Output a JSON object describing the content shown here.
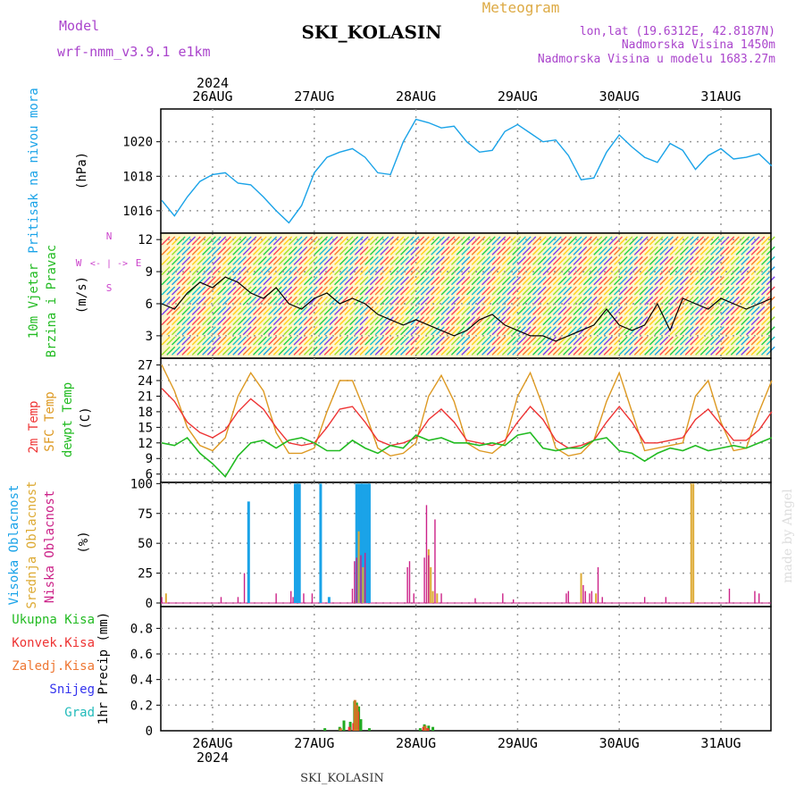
{
  "header": {
    "model_label": "Model",
    "model_name": "wrf-nmm_v3.9.1  e1km",
    "station": "SKI_KOLASIN",
    "meteogram": "Meteogram",
    "lonlat": "lon,lat (19.6312E, 42.8187N)",
    "altitude": "Nadmorska Visina 1450m",
    "model_altitude": "Nadmorska Visina u modelu 1683.27m",
    "footer_station": "SKI_KOLASIN",
    "watermark": "made by Angel"
  },
  "colors": {
    "pressure": "#1aa3e8",
    "temp2m": "#ee3333",
    "sfc_temp": "#dd9922",
    "dewpt": "#22bb22",
    "high_cloud": "#1aa3e8",
    "mid_cloud": "#ddaa33",
    "low_cloud": "#cc2288",
    "header_purple": "#aa44cc",
    "header_gold": "#ddaa44",
    "wind_axis": "#cc44cc"
  },
  "chart_data": [
    {
      "type": "line",
      "id": "pressure",
      "year_label": "2024",
      "x_labels": [
        "26AUG",
        "27AUG",
        "28AUG",
        "29AUG",
        "30AUG",
        "31AUG"
      ],
      "ylabel_main": "Pritisak na nivou mora",
      "ylabel_unit": "(hPa)",
      "yticks": [
        1016,
        1018,
        1020
      ],
      "ylim": [
        1014.7,
        1021.9
      ],
      "x_hours": [
        0,
        3,
        6,
        9,
        12,
        15,
        18,
        21,
        24,
        27,
        30,
        33,
        36,
        39,
        42,
        45,
        48,
        51,
        54,
        57,
        60,
        63,
        66,
        69,
        72,
        75,
        78,
        81,
        84,
        87,
        90,
        93,
        96,
        99,
        102,
        105,
        108,
        111,
        114,
        117,
        120,
        123,
        126,
        129,
        132,
        135,
        138,
        141,
        144
      ],
      "series": [
        {
          "values": [
            1016.6,
            1015.7,
            1016.8,
            1017.7,
            1018.1,
            1018.2,
            1017.6,
            1017.5,
            1016.8,
            1016.0,
            1015.3,
            1016.3,
            1018.2,
            1019.1,
            1019.4,
            1019.6,
            1019.1,
            1018.2,
            1018.1,
            1020.0,
            1021.3,
            1021.1,
            1020.8,
            1020.9,
            1020.0,
            1019.4,
            1019.5,
            1020.6,
            1021.0,
            1020.5,
            1020.0,
            1020.1,
            1019.2,
            1017.8,
            1017.9,
            1019.4,
            1020.4,
            1019.7,
            1019.1,
            1018.8,
            1019.9,
            1019.5,
            1018.4,
            1019.2,
            1019.6,
            1019.0,
            1019.1,
            1019.3,
            1018.6
          ]
        }
      ]
    },
    {
      "type": "line",
      "id": "wind",
      "ylabel_main": "10m Vjetar",
      "ylabel_sub": "Brzina i Pravac",
      "ylabel_unit": "(m/s)",
      "yticks": [
        3,
        6,
        9,
        12
      ],
      "ylim": [
        0.9,
        12.6
      ],
      "compass": {
        "n": "N",
        "w": "W",
        "e": "E",
        "s": "S",
        "arrows": "<- | ->"
      },
      "x_hours": [
        0,
        3,
        6,
        9,
        12,
        15,
        18,
        21,
        24,
        27,
        30,
        33,
        36,
        39,
        42,
        45,
        48,
        51,
        54,
        57,
        60,
        63,
        66,
        69,
        72,
        75,
        78,
        81,
        84,
        87,
        90,
        93,
        96,
        99,
        102,
        105,
        108,
        111,
        114,
        117,
        120,
        123,
        126,
        129,
        132,
        135,
        138,
        141,
        144
      ],
      "series": [
        {
          "values": [
            6.0,
            5.5,
            7.0,
            8.0,
            7.5,
            8.5,
            8.0,
            7.0,
            6.5,
            7.5,
            6.0,
            5.5,
            6.5,
            7.0,
            6.0,
            6.5,
            6.0,
            5.0,
            4.5,
            4.0,
            4.5,
            4.0,
            3.5,
            3.0,
            3.5,
            4.5,
            5.0,
            4.0,
            3.5,
            3.0,
            3.0,
            2.5,
            3.0,
            3.5,
            4.0,
            5.5,
            4.0,
            3.5,
            4.0,
            6.0,
            3.5,
            6.5,
            6.0,
            5.5,
            6.5,
            6.0,
            5.5,
            6.0,
            6.5
          ]
        }
      ]
    },
    {
      "type": "line",
      "id": "temperature",
      "ylabel_t2m": "2m Temp",
      "ylabel_sfc": "SFC Temp",
      "ylabel_dew": "dewpt Temp",
      "ylabel_unit": "(C)",
      "yticks": [
        6,
        9,
        12,
        15,
        18,
        21,
        24,
        27
      ],
      "ylim": [
        4.4,
        28.3
      ],
      "x_hours": [
        0,
        3,
        6,
        9,
        12,
        15,
        18,
        21,
        24,
        27,
        30,
        33,
        36,
        39,
        42,
        45,
        48,
        51,
        54,
        57,
        60,
        63,
        66,
        69,
        72,
        75,
        78,
        81,
        84,
        87,
        90,
        93,
        96,
        99,
        102,
        105,
        108,
        111,
        114,
        117,
        120,
        123,
        126,
        129,
        132,
        135,
        138,
        141,
        144
      ],
      "series": [
        {
          "name": "2m Temp",
          "values": [
            22.5,
            20.0,
            16.0,
            14.0,
            13.0,
            14.5,
            18.0,
            20.5,
            18.5,
            15.0,
            12.0,
            11.5,
            12.0,
            15.0,
            18.5,
            19.0,
            16.0,
            12.5,
            11.5,
            12.0,
            13.0,
            16.5,
            18.5,
            16.0,
            12.5,
            12.0,
            11.5,
            12.5,
            16.0,
            19.0,
            16.5,
            12.5,
            11.0,
            11.5,
            12.5,
            16.0,
            19.0,
            16.0,
            12.0,
            12.0,
            12.5,
            13.0,
            16.5,
            18.5,
            15.5,
            12.5,
            12.5,
            14.5,
            18.0
          ]
        },
        {
          "name": "SFC Temp",
          "values": [
            27.0,
            22.0,
            15.0,
            11.5,
            10.5,
            13.0,
            21.0,
            25.5,
            22.0,
            14.0,
            10.0,
            10.0,
            11.0,
            18.0,
            24.0,
            24.0,
            18.0,
            11.0,
            9.5,
            10.0,
            12.0,
            21.0,
            25.0,
            20.0,
            12.0,
            10.5,
            10.0,
            12.0,
            21.0,
            25.5,
            19.0,
            11.0,
            9.5,
            10.0,
            12.5,
            20.0,
            25.5,
            18.0,
            10.5,
            11.0,
            11.5,
            12.0,
            21.0,
            24.0,
            16.0,
            10.5,
            11.0,
            18.0,
            24.0
          ]
        },
        {
          "name": "dewpt Temp",
          "values": [
            12.0,
            11.5,
            13.0,
            10.0,
            8.0,
            5.5,
            9.5,
            12.0,
            12.5,
            11.0,
            12.5,
            13.0,
            12.0,
            10.5,
            10.5,
            12.5,
            11.0,
            10.0,
            11.5,
            11.0,
            13.5,
            12.5,
            13.0,
            12.0,
            12.0,
            11.5,
            12.0,
            11.5,
            13.5,
            14.0,
            11.0,
            10.5,
            11.0,
            11.0,
            12.5,
            13.0,
            10.5,
            10.0,
            8.5,
            10.0,
            11.0,
            10.5,
            11.5,
            10.5,
            11.0,
            11.5,
            11.0,
            12.0,
            13.0
          ]
        }
      ]
    },
    {
      "type": "bar",
      "id": "clouds",
      "ylabel_high": "Visoka Oblacnost",
      "ylabel_mid": "Srednja Oblacnost",
      "ylabel_low": "Niska Oblacnost",
      "ylabel_unit": "(%)",
      "yticks": [
        0,
        25,
        50,
        75,
        100
      ],
      "ylim": [
        -3,
        101
      ],
      "series": [
        {
          "name": "Visoka Oblacnost",
          "bars": [
            [
              20.5,
              85
            ],
            [
              31.5,
              100
            ],
            [
              32.0,
              100
            ],
            [
              32.5,
              100
            ],
            [
              37.5,
              100
            ],
            [
              46.0,
              100
            ],
            [
              46.5,
              100
            ],
            [
              47.0,
              100
            ],
            [
              47.5,
              100
            ],
            [
              48.0,
              100
            ],
            [
              48.5,
              100
            ],
            [
              49.0,
              100
            ],
            [
              39.5,
              5
            ]
          ]
        },
        {
          "name": "Srednja Oblacnost",
          "bars": [
            [
              1.0,
              8
            ],
            [
              45.5,
              2
            ],
            [
              46.5,
              60
            ],
            [
              47.5,
              30
            ],
            [
              63.0,
              45
            ],
            [
              63.5,
              30
            ],
            [
              64.0,
              10
            ],
            [
              65.0,
              8
            ],
            [
              99.0,
              25
            ],
            [
              102.5,
              8
            ],
            [
              125.0,
              100
            ],
            [
              125.5,
              100
            ]
          ]
        },
        {
          "name": "Niska Oblacnost",
          "bars": [
            [
              0.0,
              5
            ],
            [
              14.0,
              5
            ],
            [
              18.0,
              5
            ],
            [
              19.5,
              25
            ],
            [
              27.0,
              8
            ],
            [
              30.5,
              10
            ],
            [
              31.0,
              5
            ],
            [
              33.5,
              8
            ],
            [
              35.5,
              8
            ],
            [
              45.0,
              12
            ],
            [
              45.5,
              35
            ],
            [
              46.0,
              38
            ],
            [
              47.0,
              40
            ],
            [
              48.0,
              42
            ],
            [
              58.0,
              30
            ],
            [
              58.5,
              35
            ],
            [
              59.5,
              8
            ],
            [
              62.0,
              38
            ],
            [
              62.5,
              82
            ],
            [
              63.0,
              40
            ],
            [
              64.5,
              70
            ],
            [
              66.0,
              8
            ],
            [
              74.0,
              4
            ],
            [
              80.5,
              8
            ],
            [
              83.0,
              3
            ],
            [
              95.5,
              8
            ],
            [
              96.0,
              10
            ],
            [
              99.5,
              15
            ],
            [
              100.0,
              10
            ],
            [
              101.0,
              8
            ],
            [
              101.5,
              10
            ],
            [
              103.0,
              30
            ],
            [
              104.0,
              5
            ],
            [
              114.0,
              5
            ],
            [
              119.0,
              5
            ],
            [
              134.0,
              12
            ],
            [
              140.0,
              10
            ],
            [
              141.0,
              8
            ]
          ]
        }
      ]
    },
    {
      "type": "bar",
      "id": "precip",
      "legend": {
        "total": "Ukupna Kisa",
        "convective": "Konvek.Kisa",
        "freezing": "Zaledj.Kisa",
        "snow": "Snijeg",
        "hail": "Grad"
      },
      "ylabel_main": "1hr Precip (mm)",
      "yticks": [
        0,
        0.2,
        0.4,
        0.6,
        0.8
      ],
      "ylim": [
        0,
        0.97
      ],
      "x_labels": [
        "26AUG",
        "27AUG",
        "28AUG",
        "29AUG",
        "30AUG",
        "31AUG"
      ],
      "year_label": "2024",
      "series": [
        {
          "name": "Ukupna Kisa",
          "bars": [
            [
              38.5,
              0.02
            ],
            [
              42.0,
              0.03
            ],
            [
              43.0,
              0.08
            ],
            [
              44.5,
              0.07
            ],
            [
              45.5,
              0.23
            ],
            [
              46.0,
              0.22
            ],
            [
              46.5,
              0.19
            ],
            [
              47.0,
              0.09
            ],
            [
              49.0,
              0.02
            ],
            [
              61.0,
              0.02
            ],
            [
              62.0,
              0.05
            ],
            [
              63.0,
              0.04
            ],
            [
              64.0,
              0.03
            ]
          ]
        },
        {
          "name": "Konvek.Kisa",
          "bars": [
            [
              44.3,
              0.03
            ],
            [
              45.3,
              0.06
            ],
            [
              45.8,
              0.18
            ],
            [
              46.3,
              0.15
            ],
            [
              61.8,
              0.03
            ],
            [
              62.8,
              0.02
            ]
          ]
        },
        {
          "name": "Zaledj.Kisa",
          "bars": [
            [
              42.2,
              0.02
            ],
            [
              45.6,
              0.24
            ],
            [
              46.1,
              0.2
            ],
            [
              62.2,
              0.04
            ]
          ]
        }
      ]
    }
  ]
}
